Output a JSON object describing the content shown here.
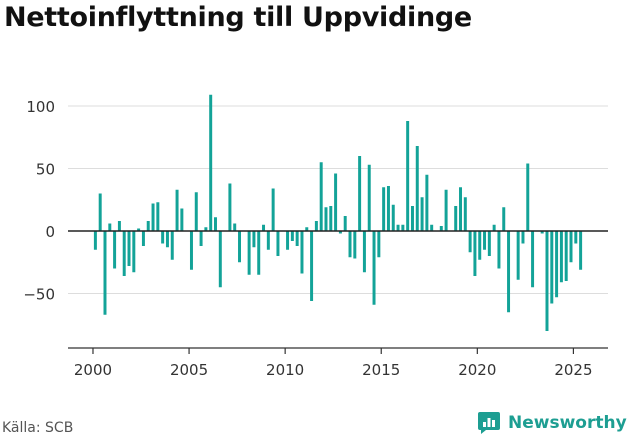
{
  "title": "Nettoinflyttning till Uppvidinge",
  "source": "Källa: SCB",
  "brand": {
    "name": "Newsworthy",
    "icon": "newsworthy-logo-icon"
  },
  "colors": {
    "bar": "#13a398",
    "zero_line": "#222222",
    "grid": "#dddddd",
    "axis": "#333333"
  },
  "chart_data": {
    "type": "bar",
    "title": "Nettoinflyttning till Uppvidinge",
    "xlabel": "",
    "ylabel": "",
    "ylim": [
      -90,
      115
    ],
    "xlim": [
      1998.7,
      2026.8
    ],
    "yticks": [
      -50,
      0,
      50,
      100
    ],
    "xticks": [
      2000,
      2005,
      2010,
      2015,
      2020,
      2025
    ],
    "grid": true,
    "x": [
      2000.125,
      2000.375,
      2000.625,
      2000.875,
      2001.125,
      2001.375,
      2001.625,
      2001.875,
      2002.125,
      2002.375,
      2002.625,
      2002.875,
      2003.125,
      2003.375,
      2003.625,
      2003.875,
      2004.125,
      2004.375,
      2004.625,
      2004.875,
      2005.125,
      2005.375,
      2005.625,
      2005.875,
      2006.125,
      2006.375,
      2006.625,
      2006.875,
      2007.125,
      2007.375,
      2007.625,
      2007.875,
      2008.125,
      2008.375,
      2008.625,
      2008.875,
      2009.125,
      2009.375,
      2009.625,
      2009.875,
      2010.125,
      2010.375,
      2010.625,
      2010.875,
      2011.125,
      2011.375,
      2011.625,
      2011.875,
      2012.125,
      2012.375,
      2012.625,
      2012.875,
      2013.125,
      2013.375,
      2013.625,
      2013.875,
      2014.125,
      2014.375,
      2014.625,
      2014.875,
      2015.125,
      2015.375,
      2015.625,
      2015.875,
      2016.125,
      2016.375,
      2016.625,
      2016.875,
      2017.125,
      2017.375,
      2017.625,
      2017.875,
      2018.125,
      2018.375,
      2018.625,
      2018.875,
      2019.125,
      2019.375,
      2019.625,
      2019.875,
      2020.125,
      2020.375,
      2020.625,
      2020.875,
      2021.125,
      2021.375,
      2021.625,
      2021.875,
      2022.125,
      2022.375,
      2022.625,
      2022.875,
      2023.125,
      2023.375,
      2023.625,
      2023.875,
      2024.125,
      2024.375,
      2024.625,
      2024.875,
      2025.125,
      2025.375
    ],
    "series": [
      {
        "values": [
          -15,
          30,
          -67,
          6,
          -30,
          8,
          -36,
          -28,
          -33,
          2,
          -12,
          8,
          22,
          23,
          -10,
          -13,
          -23,
          33,
          18,
          0,
          -31,
          31,
          -12,
          3,
          109,
          11,
          -45,
          0,
          38,
          6,
          -25,
          0,
          -35,
          -13,
          -35,
          5,
          -15,
          34,
          -20,
          0,
          -15,
          -8,
          -12,
          -34,
          3,
          -56,
          8,
          55,
          19,
          20,
          46,
          -2,
          12,
          -21,
          -22,
          60,
          -33,
          53,
          -59,
          -21,
          35,
          36,
          21,
          5,
          5,
          88,
          20,
          68,
          27,
          45,
          5,
          0,
          4,
          33,
          0,
          20,
          35,
          27,
          -17,
          -36,
          -23,
          -15,
          -20,
          5,
          -30,
          19,
          -65,
          0,
          -39,
          -10,
          54,
          -45,
          0,
          -2,
          -80,
          -58,
          -53,
          -41,
          -40,
          -25,
          -10,
          -31
        ]
      }
    ]
  }
}
